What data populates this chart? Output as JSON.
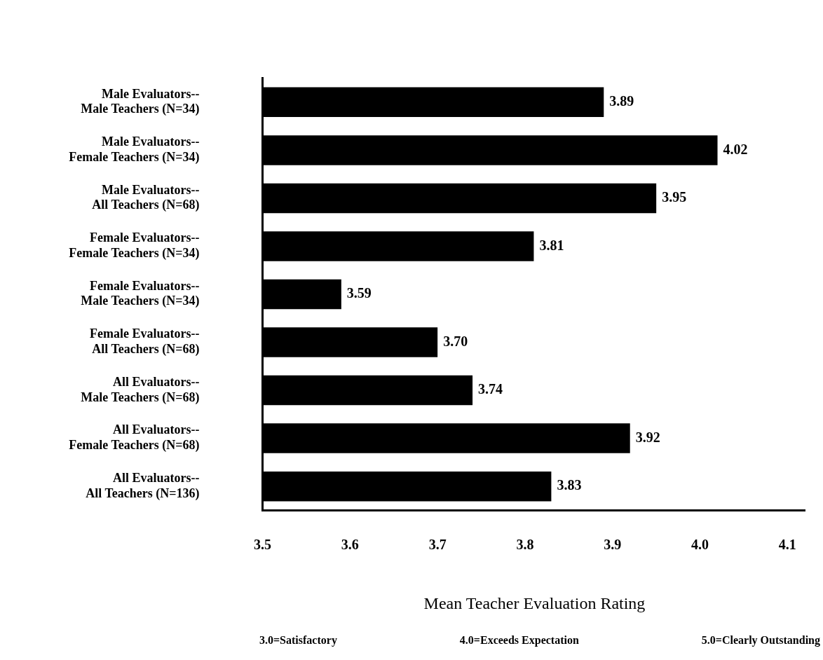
{
  "chart_data": {
    "type": "bar",
    "orientation": "horizontal",
    "xlabel": "Mean Teacher Evaluation Rating",
    "categories": [
      "Male Evaluators--\nMale Teachers (N=34)",
      "Male Evaluators--\nFemale Teachers (N=34)",
      "Male Evaluators--\nAll Teachers (N=68)",
      "Female Evaluators--\nFemale Teachers (N=34)",
      "Female Evaluators--\nMale Teachers (N=34)",
      "Female Evaluators--\nAll Teachers (N=68)",
      "All Evaluators--\nMale Teachers (N=68)",
      "All Evaluators--\nFemale Teachers (N=68)",
      "All Evaluators--\nAll Teachers (N=136)"
    ],
    "values": [
      3.89,
      4.02,
      3.95,
      3.81,
      3.59,
      3.7,
      3.74,
      3.92,
      3.83
    ],
    "value_labels": [
      "3.89",
      "4.02",
      "3.95",
      "3.81",
      "3.59",
      "3.70",
      "3.74",
      "3.92",
      "3.83"
    ],
    "color": "#000000",
    "xlim": [
      3.5,
      4.12
    ],
    "xticks": [
      3.5,
      3.6,
      3.7,
      3.8,
      3.9,
      {
        "value": 4,
        "label": "4.0"
      },
      4.1
    ],
    "grid": false,
    "legend": false,
    "annotations": [
      "3.0=Satisfactory",
      "4.0=Exceeds Expectation",
      "5.0=Clearly Outstanding"
    ]
  }
}
